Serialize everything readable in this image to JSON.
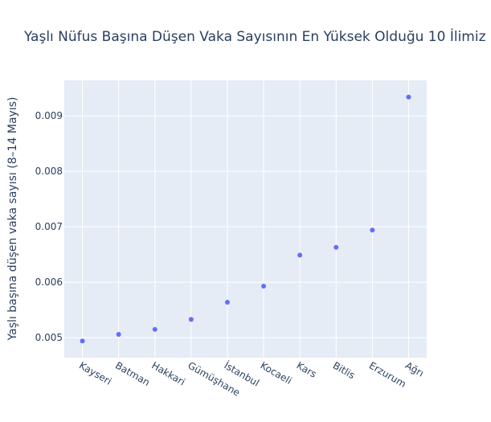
{
  "chart_data": {
    "type": "scatter",
    "title": "Yaşlı Nüfus Başına Düşen Vaka Sayısının En Yüksek Olduğu 10 İlimiz",
    "xlabel": "",
    "ylabel": "Yaşlı başına düşen vaka sayısı (8–14 Mayıs)",
    "categories": [
      "Kayseri",
      "Batman",
      "Hakkari",
      "Gümüşhane",
      "İstanbul",
      "Kocaeli",
      "Kars",
      "Bitlis",
      "Erzurum",
      "Ağrı"
    ],
    "values": [
      0.00494,
      0.00506,
      0.00515,
      0.00533,
      0.00564,
      0.00593,
      0.00649,
      0.00663,
      0.00694,
      0.00934
    ],
    "ylim": [
      0.00464,
      0.00964
    ],
    "yticks": [
      0.005,
      0.006,
      0.007,
      0.008,
      0.009
    ],
    "ytick_labels": [
      "0.005",
      "0.006",
      "0.007",
      "0.008",
      "0.009"
    ],
    "grid": true,
    "legend": "none",
    "colors": {
      "marker": "#636efa",
      "plot_background": "#e5ecf6",
      "grid": "#ffffff",
      "text": "#2a3f5f"
    }
  }
}
